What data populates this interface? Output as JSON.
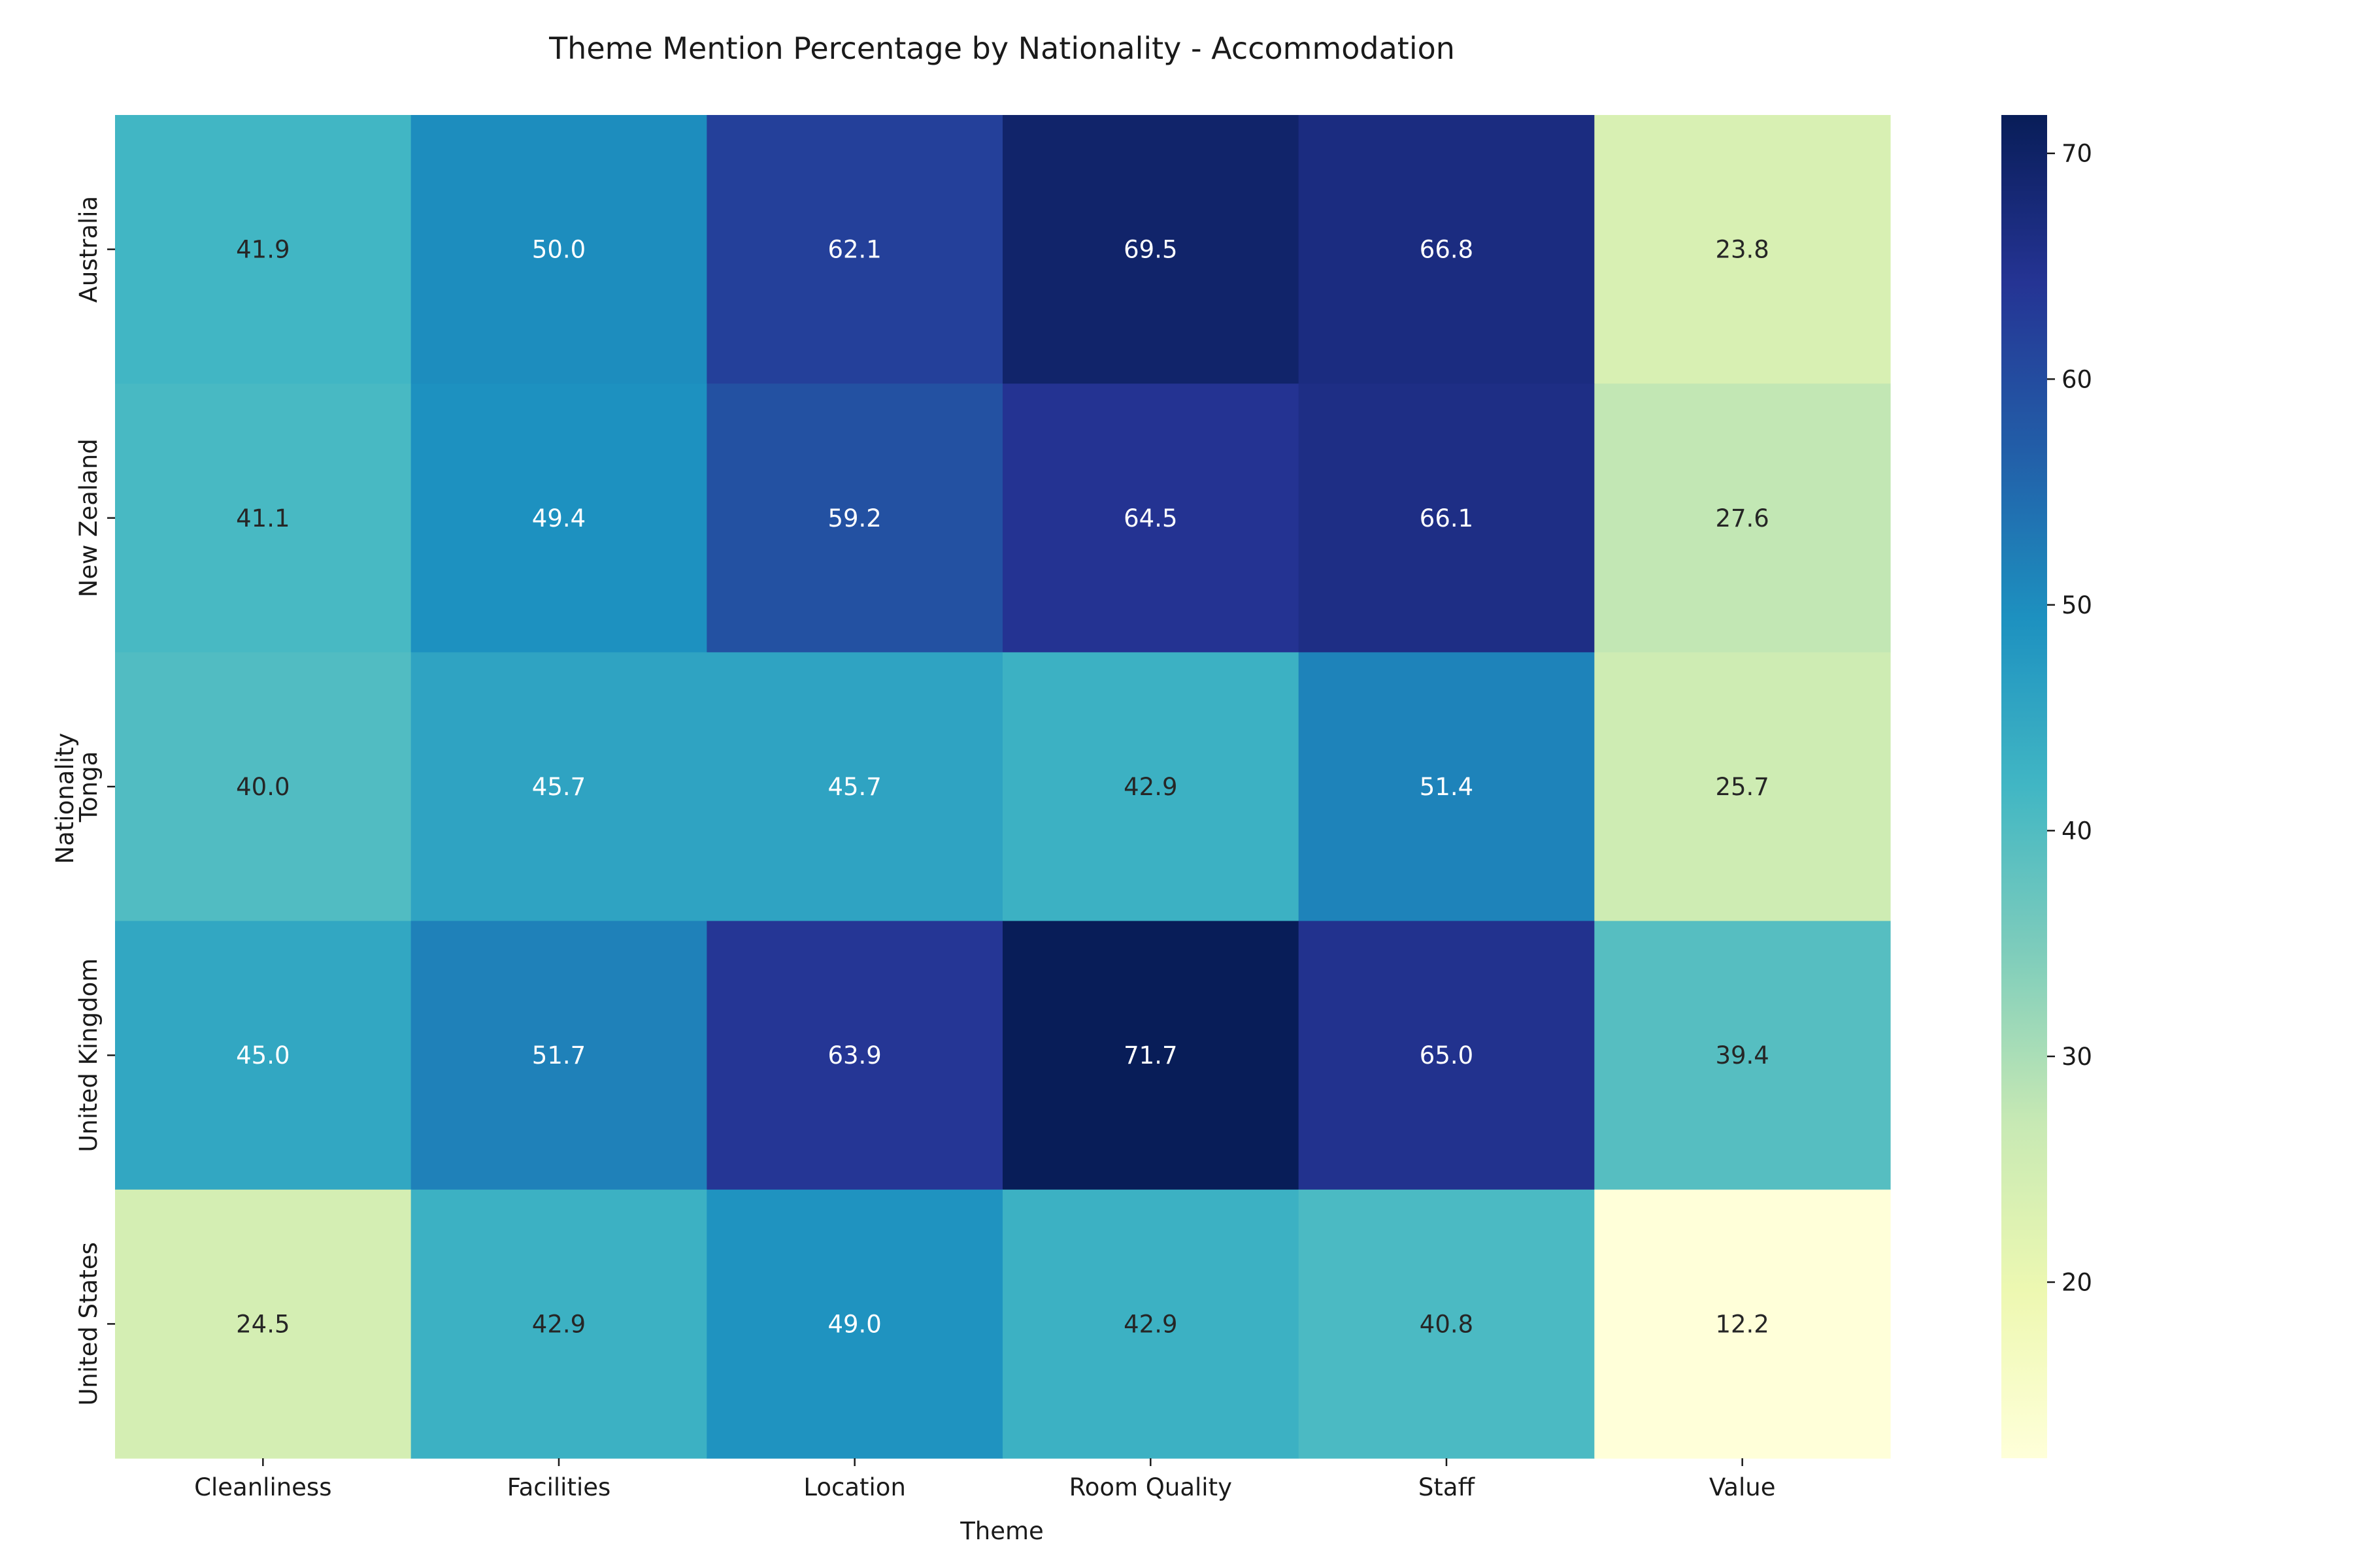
{
  "chart_data": {
    "type": "heatmap",
    "title": "Theme Mention Percentage by Nationality - Accommodation",
    "xlabel": "Theme",
    "ylabel": "Nationality",
    "columns": [
      "Cleanliness",
      "Facilities",
      "Location",
      "Room Quality",
      "Staff",
      "Value"
    ],
    "rows": [
      "Australia",
      "New Zealand",
      "Tonga",
      "United Kingdom",
      "United States"
    ],
    "values": [
      [
        41.9,
        50.0,
        62.1,
        69.5,
        66.8,
        23.8
      ],
      [
        41.1,
        49.4,
        59.2,
        64.5,
        66.1,
        27.6
      ],
      [
        40.0,
        45.7,
        45.7,
        42.9,
        51.4,
        25.7
      ],
      [
        45.0,
        51.7,
        63.9,
        71.7,
        65.0,
        39.4
      ],
      [
        24.5,
        42.9,
        49.0,
        42.9,
        40.8,
        12.2
      ]
    ],
    "value_labels": [
      [
        "41.9",
        "50.0",
        "62.1",
        "69.5",
        "66.8",
        "23.8"
      ],
      [
        "41.1",
        "49.4",
        "59.2",
        "64.5",
        "66.1",
        "27.6"
      ],
      [
        "40.0",
        "45.7",
        "45.7",
        "42.9",
        "51.4",
        "25.7"
      ],
      [
        "45.0",
        "51.7",
        "63.9",
        "71.7",
        "65.0",
        "39.4"
      ],
      [
        "24.5",
        "42.9",
        "49.0",
        "42.9",
        "40.8",
        "12.2"
      ]
    ],
    "colormap": "YlGnBu",
    "color_range": [
      12.2,
      71.7
    ],
    "colorbar_ticks": [
      20,
      30,
      40,
      50,
      60,
      70
    ],
    "colorbar_tick_labels": [
      "20",
      "30",
      "40",
      "50",
      "60",
      "70"
    ],
    "colorbar_placement": "right",
    "grid": false
  }
}
